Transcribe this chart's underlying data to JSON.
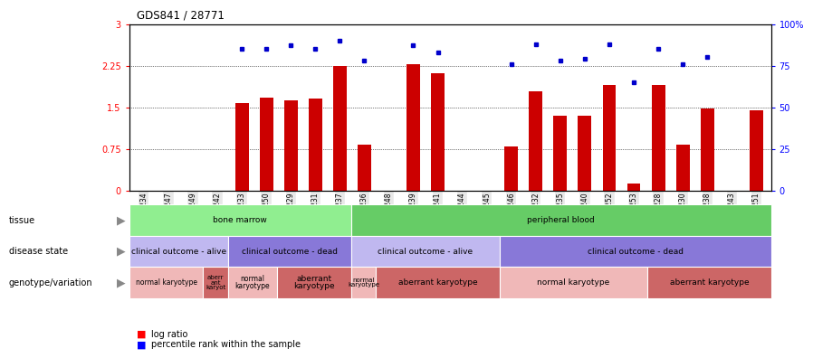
{
  "title": "GDS841 / 28771",
  "samples": [
    "GSM6234",
    "GSM6247",
    "GSM6249",
    "GSM6242",
    "GSM6233",
    "GSM6250",
    "GSM6229",
    "GSM6231",
    "GSM6237",
    "GSM6236",
    "GSM6248",
    "GSM6239",
    "GSM6241",
    "GSM6244",
    "GSM6245",
    "GSM6246",
    "GSM6232",
    "GSM6235",
    "GSM6240",
    "GSM6252",
    "GSM6253",
    "GSM6228",
    "GSM6230",
    "GSM6238",
    "GSM6243",
    "GSM6251"
  ],
  "log_ratio": [
    0.0,
    0.0,
    0.0,
    0.0,
    1.57,
    1.67,
    1.62,
    1.65,
    2.24,
    0.83,
    0.0,
    2.28,
    2.12,
    0.0,
    0.0,
    0.8,
    1.78,
    1.35,
    1.35,
    1.9,
    0.12,
    1.9,
    0.82,
    1.48,
    0.0,
    1.45
  ],
  "percentile": [
    null,
    null,
    null,
    null,
    85,
    85,
    87,
    85,
    90,
    78,
    null,
    87,
    83,
    null,
    null,
    76,
    88,
    78,
    79,
    88,
    65,
    85,
    76,
    80,
    null,
    null
  ],
  "tissue_groups": [
    {
      "label": "bone marrow",
      "start": 0,
      "end": 9,
      "color": "#90EE90"
    },
    {
      "label": "peripheral blood",
      "start": 9,
      "end": 26,
      "color": "#66CC66"
    }
  ],
  "disease_groups": [
    {
      "label": "clinical outcome - alive",
      "start": 0,
      "end": 4,
      "color": "#c0b8f0"
    },
    {
      "label": "clinical outcome - dead",
      "start": 4,
      "end": 9,
      "color": "#8878d8"
    },
    {
      "label": "clinical outcome - alive",
      "start": 9,
      "end": 15,
      "color": "#c0b8f0"
    },
    {
      "label": "clinical outcome - dead",
      "start": 15,
      "end": 26,
      "color": "#8878d8"
    }
  ],
  "geno_groups": [
    {
      "label": "normal karyotype",
      "start": 0,
      "end": 3,
      "color": "#f0b8b8",
      "fontsize": 5.5,
      "multiline": false
    },
    {
      "label": "aberr\nant\nkaryot",
      "start": 3,
      "end": 4,
      "color": "#cc6666",
      "fontsize": 5,
      "multiline": true
    },
    {
      "label": "normal\nkaryotype",
      "start": 4,
      "end": 6,
      "color": "#f0b8b8",
      "fontsize": 5.5,
      "multiline": true
    },
    {
      "label": "aberrant\nkaryotype",
      "start": 6,
      "end": 9,
      "color": "#cc6666",
      "fontsize": 6.5,
      "multiline": true
    },
    {
      "label": "normal\nkaryotype",
      "start": 9,
      "end": 10,
      "color": "#f0b8b8",
      "fontsize": 5,
      "multiline": true
    },
    {
      "label": "aberrant karyotype",
      "start": 10,
      "end": 15,
      "color": "#cc6666",
      "fontsize": 6.5,
      "multiline": false
    },
    {
      "label": "normal karyotype",
      "start": 15,
      "end": 21,
      "color": "#f0b8b8",
      "fontsize": 6.5,
      "multiline": false
    },
    {
      "label": "aberrant karyotype",
      "start": 21,
      "end": 26,
      "color": "#cc6666",
      "fontsize": 6.5,
      "multiline": false
    }
  ],
  "bar_color": "#CC0000",
  "dot_color": "#0000CC",
  "ylim_left": [
    0,
    3
  ],
  "ylim_right": [
    0,
    100
  ],
  "yticks_left": [
    0,
    0.75,
    1.5,
    2.25,
    3
  ],
  "ytick_labels_left": [
    "0",
    "0.75",
    "1.5",
    "2.25",
    "3"
  ],
  "ytick_labels_right": [
    "0",
    "25",
    "50",
    "75",
    "100%"
  ]
}
